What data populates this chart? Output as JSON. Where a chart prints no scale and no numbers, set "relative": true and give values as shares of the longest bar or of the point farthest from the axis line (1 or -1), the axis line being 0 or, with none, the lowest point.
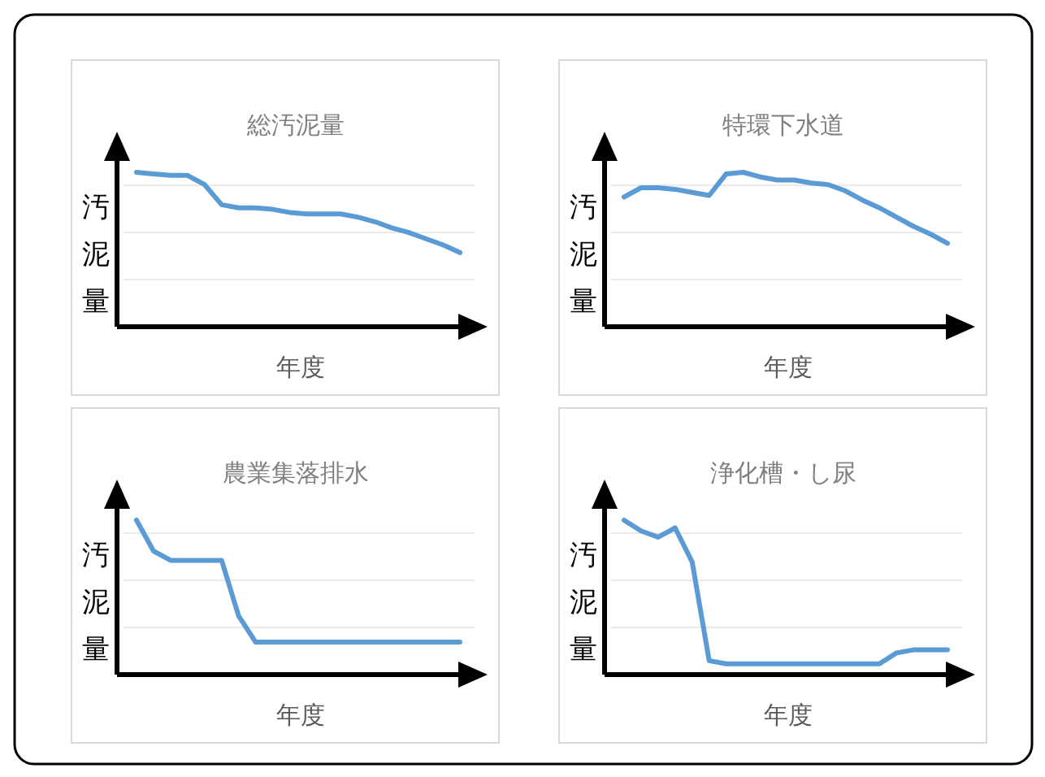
{
  "chart_data": [
    {
      "type": "line",
      "relative": true,
      "title": "総汚泥量",
      "xlabel": "年度",
      "ylabel": "汚泥量",
      "grid": true,
      "categories": [
        null,
        null,
        null,
        null,
        null,
        null,
        null,
        null,
        null,
        null,
        null,
        null,
        null,
        null,
        null,
        null,
        null,
        null,
        null,
        null
      ],
      "series": [
        {
          "color": "#5b9bd5",
          "values": [
            1,
            0.99,
            0.98,
            0.98,
            0.92,
            0.79,
            0.77,
            0.77,
            0.76,
            0.74,
            0.73,
            0.73,
            0.73,
            0.71,
            0.68,
            0.64,
            0.61,
            0.57,
            0.53,
            0.48
          ]
        }
      ]
    },
    {
      "type": "line",
      "relative": true,
      "title": "特環下水道",
      "xlabel": "年度",
      "ylabel": "汚泥量",
      "grid": true,
      "categories": [
        null,
        null,
        null,
        null,
        null,
        null,
        null,
        null,
        null,
        null,
        null,
        null,
        null,
        null,
        null,
        null,
        null,
        null,
        null,
        null
      ],
      "series": [
        {
          "color": "#5b9bd5",
          "values": [
            0.84,
            0.9,
            0.9,
            0.89,
            0.87,
            0.85,
            0.99,
            1,
            0.97,
            0.95,
            0.95,
            0.93,
            0.92,
            0.88,
            0.82,
            0.77,
            0.71,
            0.65,
            0.6,
            0.54
          ]
        }
      ]
    },
    {
      "type": "line",
      "relative": true,
      "title": "農業集落排水",
      "xlabel": "年度",
      "ylabel": "汚泥量",
      "grid": true,
      "categories": [
        null,
        null,
        null,
        null,
        null,
        null,
        null,
        null,
        null,
        null,
        null,
        null,
        null,
        null,
        null,
        null,
        null,
        null,
        null,
        null
      ],
      "series": [
        {
          "color": "#5b9bd5",
          "values": [
            1,
            0.8,
            0.74,
            0.74,
            0.74,
            0.74,
            0.38,
            0.21,
            0.21,
            0.21,
            0.21,
            0.21,
            0.21,
            0.21,
            0.21,
            0.21,
            0.21,
            0.21,
            0.21,
            0.21
          ]
        }
      ]
    },
    {
      "type": "line",
      "relative": true,
      "title": "浄化槽・し尿",
      "xlabel": "年度",
      "ylabel": "汚泥量",
      "grid": true,
      "categories": [
        null,
        null,
        null,
        null,
        null,
        null,
        null,
        null,
        null,
        null,
        null,
        null,
        null,
        null,
        null,
        null,
        null,
        null,
        null,
        null
      ],
      "series": [
        {
          "color": "#5b9bd5",
          "values": [
            1,
            0.93,
            0.89,
            0.95,
            0.73,
            0.09,
            0.07,
            0.07,
            0.07,
            0.07,
            0.07,
            0.07,
            0.07,
            0.07,
            0.07,
            0.07,
            0.14,
            0.16,
            0.16,
            0.16
          ]
        }
      ]
    }
  ]
}
